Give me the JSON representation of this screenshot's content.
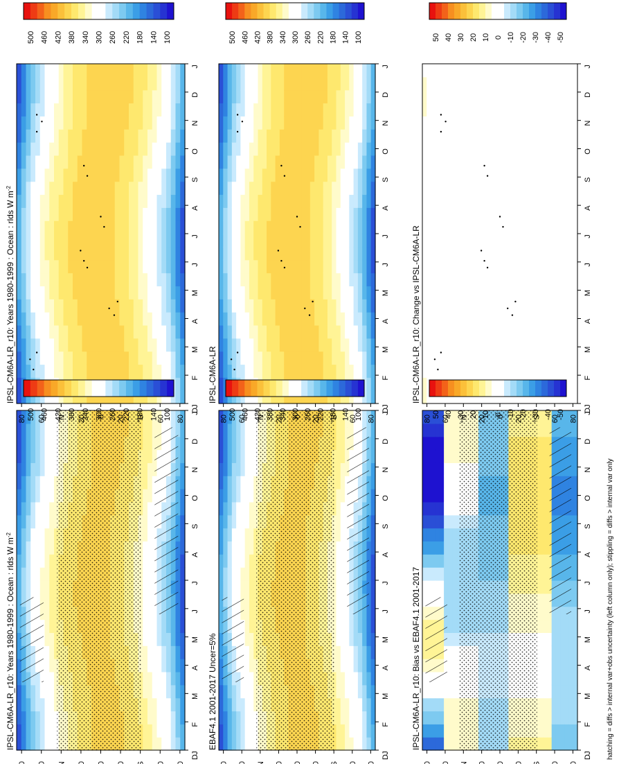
{
  "figure": {
    "footnote": "hatching = diffs > internal var+obs uncertainty (left column only); stippling = diffs > internal var only"
  },
  "months": [
    "J",
    "F",
    "M",
    "A",
    "M",
    "J",
    "J",
    "A",
    "S",
    "O",
    "N",
    "D",
    "J"
  ],
  "lat_labels": [
    "80",
    "60",
    "°N",
    "20",
    "0",
    "20",
    "°S",
    "60",
    "80"
  ],
  "colorbars": {
    "abs": {
      "labels": [
        "500",
        "460",
        "420",
        "380",
        "340",
        "300",
        "260",
        "220",
        "180",
        "140",
        "100"
      ],
      "colors": [
        "#e8120f",
        "#ee3b14",
        "#f3621a",
        "#f78f20",
        "#f9a828",
        "#fbc03a",
        "#fdd550",
        "#fee86e",
        "#fff496",
        "#fffbcb",
        "#ffffff",
        "#ffffff",
        "#c9eafd",
        "#a3dbf7",
        "#7dcaf0",
        "#58b6ea",
        "#3b9ee6",
        "#2f83e1",
        "#2c69da",
        "#2a4fd6",
        "#2633d2",
        "#1e12d0"
      ]
    },
    "diff": {
      "labels": [
        "50",
        "40",
        "30",
        "20",
        "10",
        "0",
        "-10",
        "-20",
        "-30",
        "-40",
        "-50"
      ],
      "colors": [
        "#e8120f",
        "#ee3b14",
        "#f3621a",
        "#f78f20",
        "#f9a828",
        "#fbc03a",
        "#fdd550",
        "#fee86e",
        "#fff496",
        "#fffbcb",
        "#ffffff",
        "#ffffff",
        "#c9eafd",
        "#a3dbf7",
        "#7dcaf0",
        "#58b6ea",
        "#3b9ee6",
        "#2f83e1",
        "#2c69da",
        "#2a4fd6",
        "#2633d2",
        "#1e12d0"
      ]
    }
  },
  "chart_data": [
    {
      "type": "heatmap",
      "id": "left-top",
      "title": "IPSL-CM6A-LR_r10: Years 1980-1999 : Ocean : rlds W m",
      "title_sup": "-2",
      "x": [
        "J",
        "F",
        "M",
        "A",
        "M",
        "J",
        "J",
        "A",
        "S",
        "O",
        "N",
        "D",
        "J"
      ],
      "y": [
        "80",
        "60",
        "°N",
        "20",
        "0",
        "20",
        "°S",
        "60",
        "80"
      ],
      "colorbar": "abs",
      "hatching": true,
      "stippling": "dense"
    },
    {
      "type": "heatmap",
      "id": "left-mid",
      "title": "EBAF4.1 2001-2017 Uncer=5%",
      "x": [
        "J",
        "F",
        "M",
        "A",
        "M",
        "J",
        "J",
        "A",
        "S",
        "O",
        "N",
        "D",
        "J"
      ],
      "y": [
        "80",
        "60",
        "°N",
        "20",
        "0",
        "20",
        "°S",
        "60",
        "80"
      ],
      "colorbar": "abs",
      "hatching": true,
      "stippling": "dense"
    },
    {
      "type": "heatmap",
      "id": "left-bot",
      "title": "IPSL-CM6A-LR_r10: Bias vs EBAF4.1 2001-2017",
      "x": [
        "J",
        "F",
        "M",
        "A",
        "M",
        "J",
        "J",
        "A",
        "S",
        "O",
        "N",
        "D",
        "J"
      ],
      "y": [
        "80",
        "60",
        "°N",
        "20",
        "0",
        "20",
        "°S",
        "60",
        "80"
      ],
      "colorbar": "diff",
      "hatching": true,
      "stippling": "dense"
    },
    {
      "type": "heatmap",
      "id": "right-top",
      "title": "IPSL-CM6A-LR_r10: Years 1980-1999 : Ocean : rlds W m",
      "title_sup": "-2",
      "x": [
        "J",
        "F",
        "M",
        "A",
        "M",
        "J",
        "J",
        "A",
        "S",
        "O",
        "N",
        "D",
        "J"
      ],
      "y": [
        "80",
        "60",
        "°N",
        "20",
        "0",
        "20",
        "°S",
        "60",
        "80"
      ],
      "colorbar": "abs",
      "hatching": false,
      "stippling": "sparse"
    },
    {
      "type": "heatmap",
      "id": "right-mid",
      "title": "IPSL-CM6A-LR",
      "x": [
        "J",
        "F",
        "M",
        "A",
        "M",
        "J",
        "J",
        "A",
        "S",
        "O",
        "N",
        "D",
        "J"
      ],
      "y": [
        "80",
        "60",
        "°N",
        "20",
        "0",
        "20",
        "°S",
        "60",
        "80"
      ],
      "colorbar": "abs",
      "hatching": false,
      "stippling": "sparse"
    },
    {
      "type": "heatmap",
      "id": "right-bot",
      "title": "IPSL-CM6A-LR_r10: Change vs IPSL-CM6A-LR",
      "x": [
        "J",
        "F",
        "M",
        "A",
        "M",
        "J",
        "J",
        "A",
        "S",
        "O",
        "N",
        "D",
        "J"
      ],
      "y": [
        "80",
        "60",
        "°N",
        "20",
        "0",
        "20",
        "°S",
        "60",
        "80"
      ],
      "colorbar": "diff",
      "hatching": false,
      "stippling": "sparse"
    }
  ]
}
